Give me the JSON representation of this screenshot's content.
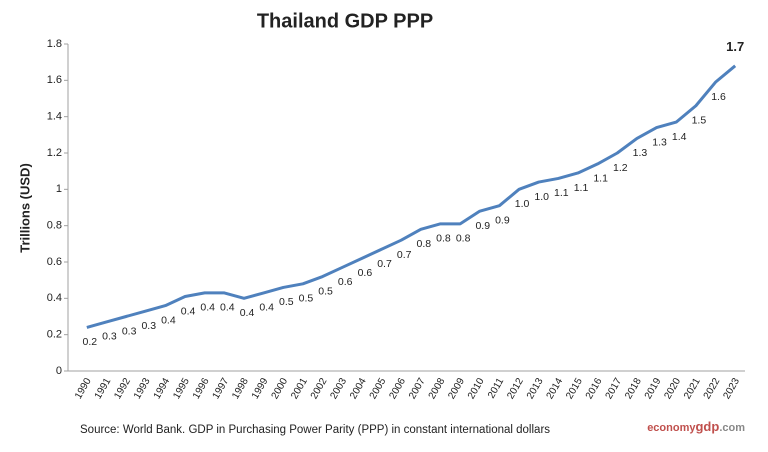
{
  "chart_data": {
    "type": "line",
    "title": "Thailand GDP PPP",
    "y_label": "Trillions (USD)",
    "categories": [
      "1990",
      "1991",
      "1992",
      "1993",
      "1994",
      "1995",
      "1996",
      "1997",
      "1998",
      "1999",
      "2000",
      "2001",
      "2002",
      "2003",
      "2004",
      "2005",
      "2006",
      "2007",
      "2008",
      "2009",
      "2010",
      "2011",
      "2012",
      "2013",
      "2014",
      "2015",
      "2016",
      "2017",
      "2018",
      "2019",
      "2020",
      "2021",
      "2022",
      "2023"
    ],
    "series": [
      {
        "name": "Thailand GDP PPP",
        "color": "#4f81bd",
        "values": [
          0.24,
          0.27,
          0.3,
          0.33,
          0.36,
          0.41,
          0.43,
          0.43,
          0.4,
          0.43,
          0.46,
          0.48,
          0.52,
          0.57,
          0.62,
          0.67,
          0.72,
          0.78,
          0.81,
          0.81,
          0.88,
          0.91,
          1.0,
          1.04,
          1.06,
          1.09,
          1.14,
          1.2,
          1.28,
          1.34,
          1.37,
          1.46,
          1.59,
          1.68
        ],
        "value_labels": [
          "0.2",
          "0.3",
          "0.3",
          "0.3",
          "0.4",
          "0.4",
          "0.4",
          "0.4",
          "0.4",
          "0.4",
          "0.5",
          "0.5",
          "0.5",
          "0.6",
          "0.6",
          "0.7",
          "0.7",
          "0.8",
          "0.8",
          "0.8",
          "0.9",
          "0.9",
          "1.0",
          "1.0",
          "1.1",
          "1.1",
          "1.1",
          "1.2",
          "1.3",
          "1.3",
          "1.4",
          "1.5",
          "1.6",
          "1.7"
        ]
      }
    ],
    "ylim": [
      0,
      1.8
    ],
    "yticks": [
      0,
      0.2,
      0.4,
      0.6,
      0.8,
      1,
      1.2,
      1.4,
      1.6,
      1.8
    ],
    "grid": false,
    "source": "Source:  World Bank.  GDP  in  Purchasing Power Parity (PPP)  in constant international dollars",
    "watermark": [
      "economy",
      "gdp",
      ".com"
    ]
  }
}
